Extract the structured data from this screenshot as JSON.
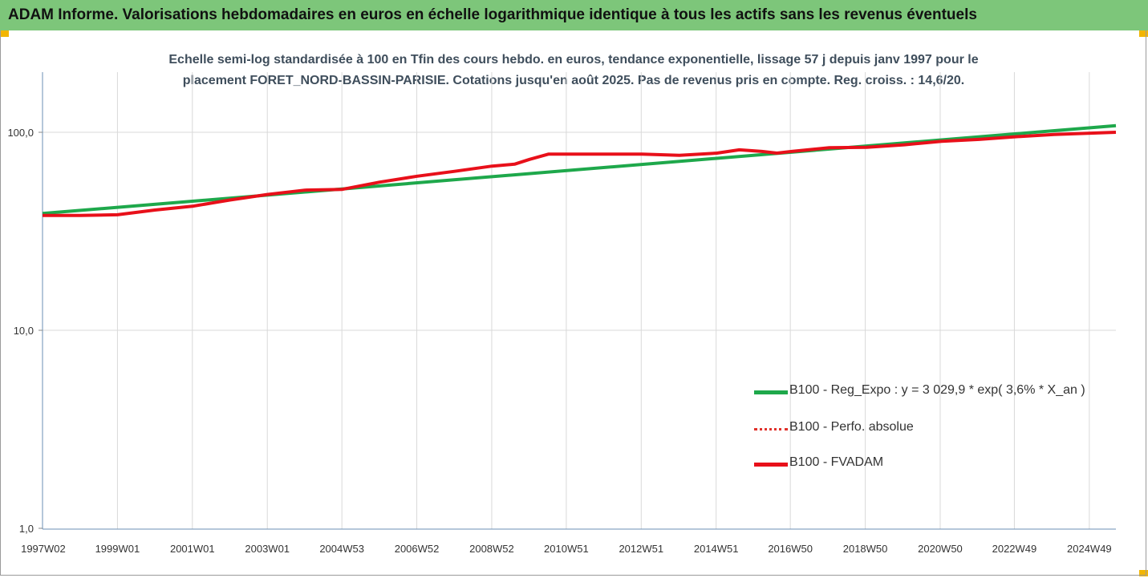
{
  "header": {
    "title": "ADAM Informe. Valorisations hebdomadaires en euros en échelle logarithmique identique à tous les actifs sans les revenus éventuels"
  },
  "chart_data": {
    "type": "line",
    "title_line1": "Echelle semi-log standardisée à 100 en Tfin des cours hebdo. en euros, tendance exponentielle, lissage 57 j depuis janv 1997 pour le",
    "title_line2": "placement FORET_NORD-BASSIN-PARISIE. Cotations jusqu'en août 2025. Pas de revenus pris en compte. Reg. croiss. : 14,6/20.",
    "y_scale": "log",
    "ylim": [
      1,
      200
    ],
    "y_ticks": [
      1,
      10,
      100
    ],
    "y_tick_labels": [
      "1,0",
      "10,0",
      "100,0"
    ],
    "xlim": [
      1997.0,
      2025.65
    ],
    "x_ticks": [
      1997.02,
      1999.0,
      2001.0,
      2003.0,
      2004.99,
      2006.99,
      2008.99,
      2010.98,
      2012.98,
      2014.98,
      2016.96,
      2018.96,
      2020.96,
      2022.94,
      2024.94
    ],
    "x_tick_labels": [
      "1997W02",
      "1999W01",
      "2001W01",
      "2003W01",
      "2004W53",
      "2006W52",
      "2008W52",
      "2010W51",
      "2012W51",
      "2014W51",
      "2016W50",
      "2018W50",
      "2020W50",
      "2022W49",
      "2024W49"
    ],
    "grid": "vertical",
    "legend_position": "bottom-right",
    "colors": {
      "regression": "#1ea84b",
      "perfo": "#e0302a",
      "fvadam": "#e8101a",
      "grid": "#d9d9d9",
      "axis": "#6b8fb5"
    },
    "series": [
      {
        "name": "B100 - Reg_Expo : y = 3 029,9 * exp( 3,6% *  X_an )",
        "style": "solid-green",
        "x": [
          1997.0,
          2025.65
        ],
        "y": [
          38.9,
          108.0
        ]
      },
      {
        "name": "B100 - Perfo. absolue",
        "style": "dotted-red",
        "x": [],
        "y": []
      },
      {
        "name": "B100 - FVADAM",
        "style": "solid-red",
        "x": [
          1997.0,
          1998.0,
          1999.0,
          2000.0,
          2001.0,
          2002.0,
          2003.0,
          2004.0,
          2005.0,
          2006.0,
          2007.0,
          2008.0,
          2009.0,
          2009.6,
          2010.0,
          2010.5,
          2011.0,
          2012.0,
          2013.0,
          2014.0,
          2015.0,
          2015.6,
          2016.2,
          2016.6,
          2017.0,
          2018.0,
          2019.0,
          2020.0,
          2021.0,
          2022.0,
          2023.0,
          2024.0,
          2025.65
        ],
        "y": [
          38.0,
          38.0,
          38.3,
          40.5,
          42.3,
          45.5,
          48.5,
          51.0,
          51.5,
          56.0,
          60.0,
          63.5,
          67.5,
          69.0,
          73.0,
          77.5,
          77.5,
          77.5,
          77.5,
          76.5,
          78.5,
          81.5,
          80.0,
          78.5,
          80.0,
          83.5,
          84.0,
          86.5,
          90.0,
          92.0,
          95.0,
          97.5,
          100.0
        ]
      }
    ]
  }
}
